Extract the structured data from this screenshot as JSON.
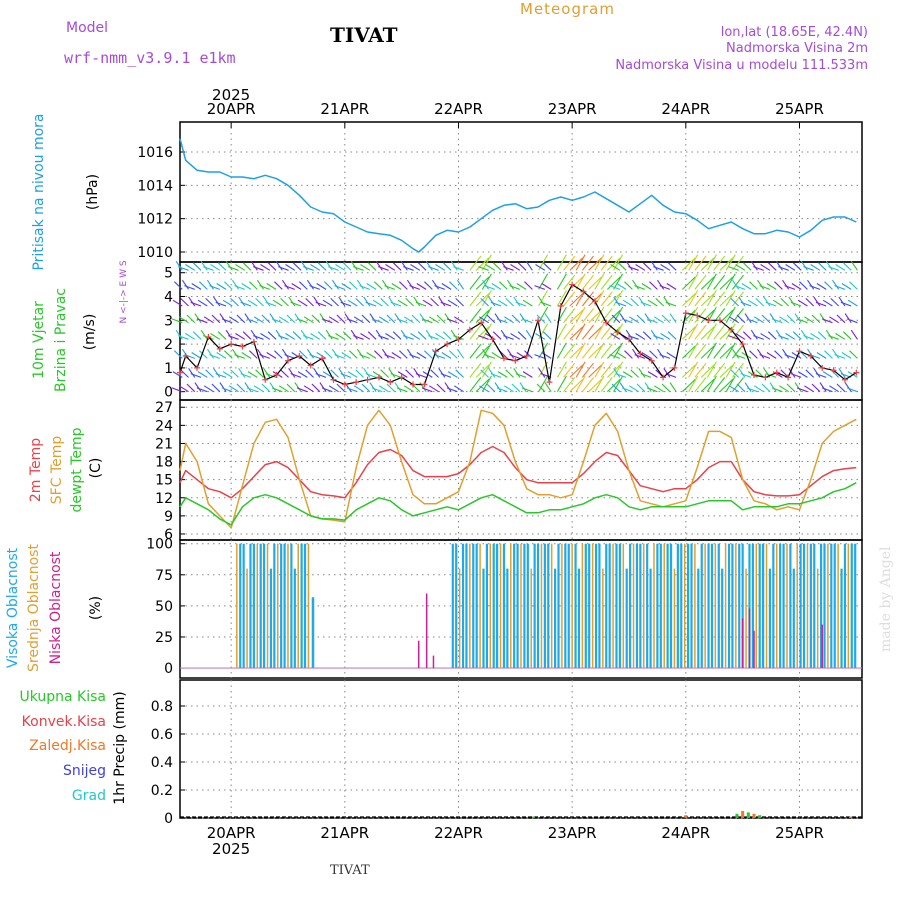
{
  "header": {
    "model_label": "Model",
    "model_name": "wrf-nmm_v3.9.1 e1km",
    "station": "TIVAT",
    "product": "Meteogram",
    "lonlat": "lon,lat (18.65E, 42.4N)",
    "elevation": "Nadmorska Visina 2m",
    "model_elevation": "Nadmorska Visina u modelu 111.533m"
  },
  "footer": {
    "station": "TIVAT",
    "credit": "made by Angel"
  },
  "time_axis": {
    "day_labels": [
      "20APR",
      "21APR",
      "22APR",
      "23APR",
      "24APR",
      "25APR"
    ],
    "year": "2025",
    "start_day_offset": -0.45,
    "end_day_offset": 5.55
  },
  "colors": {
    "pressure": "#1ea0e6",
    "t2m": "#e8424a",
    "sfc": "#e0a030",
    "dewpt": "#28c828",
    "high_cloud": "#1eaaea",
    "mid_cloud": "#e0a030",
    "low_cloud": "#cc2090",
    "total_precip": "#28c828",
    "conv_precip": "#e8424a",
    "frz_precip": "#f07828",
    "snow": "#4040e0",
    "graupel": "#20c8c8"
  },
  "chart_data": [
    {
      "type": "line",
      "panel": "pressure",
      "ylabel": [
        "Pritisak na nivou mora",
        "(hPa)"
      ],
      "ylim": [
        1009.4,
        1017.8
      ],
      "yticks": [
        1010,
        1012,
        1014,
        1016
      ],
      "x": [
        -0.45,
        -0.4,
        -0.3,
        -0.2,
        -0.1,
        0,
        0.1,
        0.2,
        0.3,
        0.4,
        0.5,
        0.6,
        0.7,
        0.8,
        0.9,
        1.0,
        1.1,
        1.2,
        1.3,
        1.4,
        1.5,
        1.6,
        1.65,
        1.7,
        1.8,
        1.9,
        2.0,
        2.1,
        2.2,
        2.3,
        2.4,
        2.5,
        2.6,
        2.7,
        2.8,
        2.9,
        3.0,
        3.1,
        3.2,
        3.3,
        3.4,
        3.5,
        3.6,
        3.7,
        3.8,
        3.9,
        4.0,
        4.1,
        4.2,
        4.3,
        4.4,
        4.5,
        4.6,
        4.7,
        4.8,
        4.9,
        5.0,
        5.1,
        5.2,
        5.3,
        5.4,
        5.5
      ],
      "series": [
        {
          "values": [
            1016.8,
            1015.5,
            1014.9,
            1014.8,
            1014.8,
            1014.5,
            1014.5,
            1014.4,
            1014.6,
            1014.4,
            1014.0,
            1013.4,
            1012.7,
            1012.4,
            1012.3,
            1011.8,
            1011.5,
            1011.2,
            1011.1,
            1011.0,
            1010.7,
            1010.2,
            1010.0,
            1010.3,
            1011.0,
            1011.3,
            1011.2,
            1011.5,
            1012.0,
            1012.5,
            1012.8,
            1012.9,
            1012.6,
            1012.7,
            1013.1,
            1013.3,
            1013.1,
            1013.3,
            1013.6,
            1013.2,
            1012.8,
            1012.4,
            1012.9,
            1013.4,
            1012.8,
            1012.4,
            1012.3,
            1011.9,
            1011.4,
            1011.6,
            1011.8,
            1011.4,
            1011.1,
            1011.1,
            1011.3,
            1011.2,
            1010.9,
            1011.3,
            1011.9,
            1012.1,
            1012.1,
            1011.8
          ]
        }
      ]
    },
    {
      "type": "line",
      "panel": "wind",
      "ylabel": [
        "10m Vjetar",
        "Brzina i Pravac",
        "(m/s)"
      ],
      "compass": "N <-|-> E W S",
      "ylim": [
        -0.35,
        5.45
      ],
      "yticks": [
        0,
        1,
        2,
        3,
        4,
        5
      ],
      "x": [
        -0.45,
        -0.4,
        -0.3,
        -0.2,
        -0.1,
        0,
        0.1,
        0.2,
        0.3,
        0.4,
        0.5,
        0.6,
        0.7,
        0.8,
        0.9,
        1.0,
        1.1,
        1.2,
        1.3,
        1.4,
        1.5,
        1.6,
        1.7,
        1.8,
        1.9,
        2.0,
        2.1,
        2.2,
        2.3,
        2.4,
        2.5,
        2.6,
        2.7,
        2.8,
        2.9,
        3.0,
        3.1,
        3.2,
        3.3,
        3.4,
        3.5,
        3.6,
        3.7,
        3.8,
        3.9,
        4.0,
        4.1,
        4.2,
        4.3,
        4.4,
        4.5,
        4.6,
        4.7,
        4.8,
        4.9,
        5.0,
        5.1,
        5.2,
        5.3,
        5.4,
        5.5
      ],
      "series": [
        {
          "values": [
            0.8,
            1.5,
            1.0,
            2.3,
            1.8,
            2.0,
            1.9,
            2.1,
            0.5,
            0.7,
            1.3,
            1.5,
            1.1,
            1.4,
            0.5,
            0.3,
            0.4,
            0.5,
            0.6,
            0.4,
            0.6,
            0.3,
            0.3,
            1.7,
            2.0,
            2.2,
            2.6,
            2.9,
            2.2,
            1.4,
            1.3,
            1.5,
            3.0,
            0.4,
            3.6,
            4.5,
            4.2,
            3.8,
            2.9,
            2.5,
            2.2,
            1.6,
            1.3,
            0.6,
            1.0,
            3.3,
            3.2,
            3.0,
            3.0,
            2.6,
            2.0,
            0.7,
            0.6,
            0.8,
            0.6,
            1.7,
            1.5,
            1.0,
            0.9,
            0.5,
            0.8
          ]
        }
      ]
    },
    {
      "type": "line",
      "panel": "temperature",
      "ylabel": [
        "2m Temp",
        "SFC Temp",
        "dewpt Temp",
        "(C)"
      ],
      "ylim": [
        5,
        28.2
      ],
      "yticks": [
        6,
        9,
        12,
        15,
        18,
        21,
        24,
        27
      ],
      "x": [
        -0.45,
        -0.4,
        -0.3,
        -0.2,
        -0.1,
        0,
        0.1,
        0.2,
        0.3,
        0.4,
        0.5,
        0.6,
        0.7,
        0.8,
        0.9,
        1.0,
        1.1,
        1.2,
        1.3,
        1.4,
        1.5,
        1.6,
        1.7,
        1.8,
        1.9,
        2.0,
        2.1,
        2.2,
        2.3,
        2.4,
        2.5,
        2.6,
        2.7,
        2.8,
        2.9,
        3.0,
        3.1,
        3.2,
        3.3,
        3.4,
        3.5,
        3.6,
        3.7,
        3.8,
        3.9,
        4.0,
        4.1,
        4.2,
        4.3,
        4.4,
        4.5,
        4.6,
        4.7,
        4.8,
        4.9,
        5.0,
        5.1,
        5.2,
        5.3,
        5.4,
        5.5
      ],
      "series": [
        {
          "name": "2m Temp",
          "values": [
            14.5,
            16.5,
            15.0,
            13.5,
            13.0,
            12.0,
            13.5,
            15.5,
            17.5,
            18.0,
            17.0,
            15.0,
            13.0,
            12.5,
            12.3,
            12.0,
            14.5,
            17.5,
            19.5,
            20.0,
            19.0,
            16.5,
            15.5,
            15.5,
            15.5,
            16.0,
            17.5,
            19.5,
            20.5,
            19.5,
            17.0,
            15.0,
            14.5,
            14.5,
            14.5,
            14.5,
            16.0,
            18.0,
            19.5,
            19.0,
            16.5,
            14.0,
            13.5,
            13.0,
            13.5,
            13.5,
            15.0,
            17.0,
            18.0,
            18.0,
            15.0,
            13.0,
            12.5,
            12.3,
            12.3,
            12.5,
            14.0,
            15.5,
            16.5,
            16.8,
            17.0
          ]
        },
        {
          "name": "SFC Temp",
          "values": [
            16.5,
            21.0,
            18.0,
            11.0,
            9.0,
            7.0,
            14.0,
            21.0,
            24.5,
            25.0,
            22.0,
            15.0,
            9.0,
            8.5,
            8.3,
            8.0,
            17.0,
            24.0,
            26.5,
            24.0,
            18.0,
            12.5,
            11.0,
            11.0,
            12.0,
            13.0,
            18.0,
            26.5,
            26.0,
            24.0,
            18.0,
            13.5,
            12.5,
            12.5,
            12.0,
            12.5,
            18.0,
            24.0,
            26.0,
            23.0,
            16.5,
            11.5,
            11.0,
            10.5,
            11.0,
            11.5,
            17.0,
            23.0,
            23.0,
            22.0,
            15.0,
            11.5,
            11.0,
            10.0,
            10.5,
            10.0,
            15.0,
            21.0,
            23.0,
            24.0,
            25.0
          ]
        },
        {
          "name": "dewpt Temp",
          "values": [
            10.5,
            12.0,
            11.0,
            10.0,
            8.5,
            7.5,
            10.5,
            12.0,
            12.5,
            12.0,
            11.0,
            10.0,
            9.0,
            8.5,
            8.5,
            8.3,
            10.0,
            11.0,
            12.0,
            11.5,
            10.0,
            9.0,
            9.5,
            10.0,
            10.5,
            10.0,
            11.0,
            12.0,
            12.5,
            11.5,
            10.5,
            9.5,
            9.5,
            10.0,
            10.0,
            10.5,
            11.0,
            12.0,
            12.5,
            12.0,
            10.5,
            10.0,
            10.5,
            10.5,
            10.5,
            10.5,
            11.0,
            11.5,
            11.5,
            11.5,
            10.0,
            10.5,
            10.5,
            10.5,
            11.0,
            11.0,
            11.5,
            12.0,
            13.0,
            13.5,
            14.5
          ]
        }
      ]
    },
    {
      "type": "bar",
      "panel": "cloud",
      "ylabel": [
        "Visoka Oblacnost",
        "Srednja Oblacnost",
        "Niska Oblacnost",
        "(%)"
      ],
      "ylim": [
        -8,
        103
      ],
      "yticks": [
        0,
        25,
        50,
        75,
        100
      ],
      "series": [
        {
          "name": "Visoka Oblacnost",
          "segments": [
            {
              "start": 0.05,
              "end": 0.7,
              "level": 100
            },
            {
              "start": 1.95,
              "end": 5.5,
              "level": 100
            }
          ],
          "values_x": [
            0.72
          ],
          "values": [
            57
          ]
        },
        {
          "name": "Srednja Oblacnost",
          "segments": [
            {
              "start": 0.05,
              "end": 0.7,
              "level": 100
            },
            {
              "start": 1.95,
              "end": 5.5,
              "level": 100
            }
          ]
        },
        {
          "name": "Niska Oblacnost",
          "x": [
            1.65,
            1.72,
            1.78,
            4.5,
            4.56,
            4.6,
            5.2
          ],
          "values": [
            22,
            60,
            10,
            40,
            48,
            30,
            35
          ]
        }
      ]
    },
    {
      "type": "bar",
      "panel": "precip",
      "ylabel": [
        "1hr Precip (mm)"
      ],
      "legend": [
        "Ukupna Kisa",
        "Konvek.Kisa",
        "Zaledj.Kisa",
        "Snijeg",
        "Grad"
      ],
      "ylim": [
        0,
        1.0
      ],
      "yticks": [
        0,
        0.2,
        0.4,
        0.6,
        0.8
      ],
      "series": [
        {
          "name": "Ukupna Kisa",
          "x": [
            2.66,
            4.0,
            4.45,
            4.5,
            4.55,
            4.6,
            4.65,
            5.45
          ],
          "values": [
            0.01,
            0.02,
            0.03,
            0.05,
            0.04,
            0.03,
            0.02,
            0.01
          ]
        }
      ]
    }
  ]
}
